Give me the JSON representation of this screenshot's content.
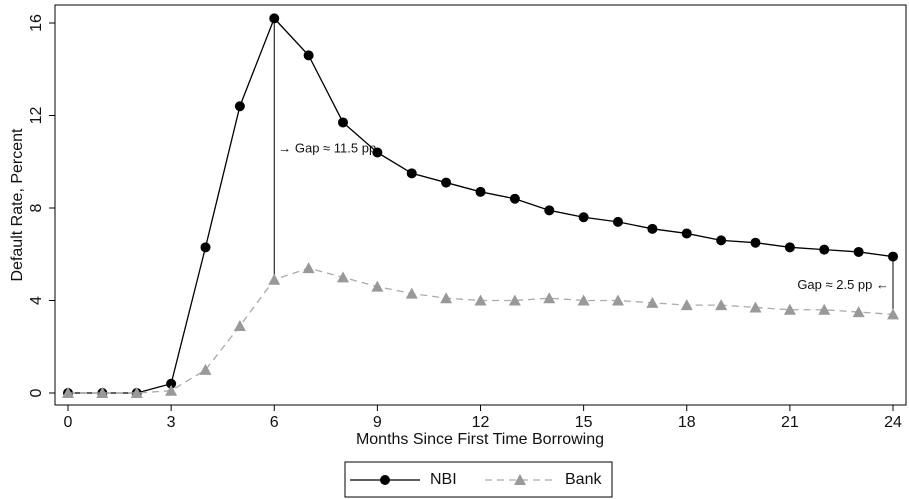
{
  "chart_data": {
    "type": "line",
    "x_label": "Months Since First Time Borrowing",
    "y_label": "Default Rate, Percent",
    "x": [
      0,
      1,
      2,
      3,
      4,
      5,
      6,
      7,
      8,
      9,
      10,
      11,
      12,
      13,
      14,
      15,
      16,
      17,
      18,
      19,
      20,
      21,
      22,
      23,
      24
    ],
    "series": [
      {
        "name": "NBI",
        "color": "#000000",
        "marker": "circle",
        "dash": false,
        "values": [
          0,
          0,
          0,
          0.4,
          6.3,
          12.4,
          16.2,
          14.6,
          11.7,
          10.4,
          9.5,
          9.1,
          8.7,
          8.4,
          7.9,
          7.6,
          7.4,
          7.1,
          6.9,
          6.6,
          6.5,
          6.3,
          6.2,
          6.1,
          5.9
        ]
      },
      {
        "name": "Bank",
        "color": "#999999",
        "marker": "triangle",
        "dash": true,
        "values": [
          0,
          0,
          0,
          0.1,
          1.0,
          2.9,
          4.9,
          5.4,
          5.0,
          4.6,
          4.3,
          4.1,
          4.0,
          4.0,
          4.1,
          4.0,
          4.0,
          3.9,
          3.8,
          3.8,
          3.7,
          3.6,
          3.6,
          3.5,
          3.4
        ]
      }
    ],
    "annotations": [
      "→ Gap ≈ 11.5 pp",
      "Gap ≈ 2.5 pp ←"
    ],
    "xlim": [
      0,
      24
    ],
    "xticks": [
      0,
      3,
      6,
      9,
      12,
      15,
      18,
      21,
      24
    ],
    "ylim": [
      0,
      16
    ],
    "yticks": [
      0,
      4,
      8,
      12,
      16
    ],
    "legend": "bottom"
  }
}
